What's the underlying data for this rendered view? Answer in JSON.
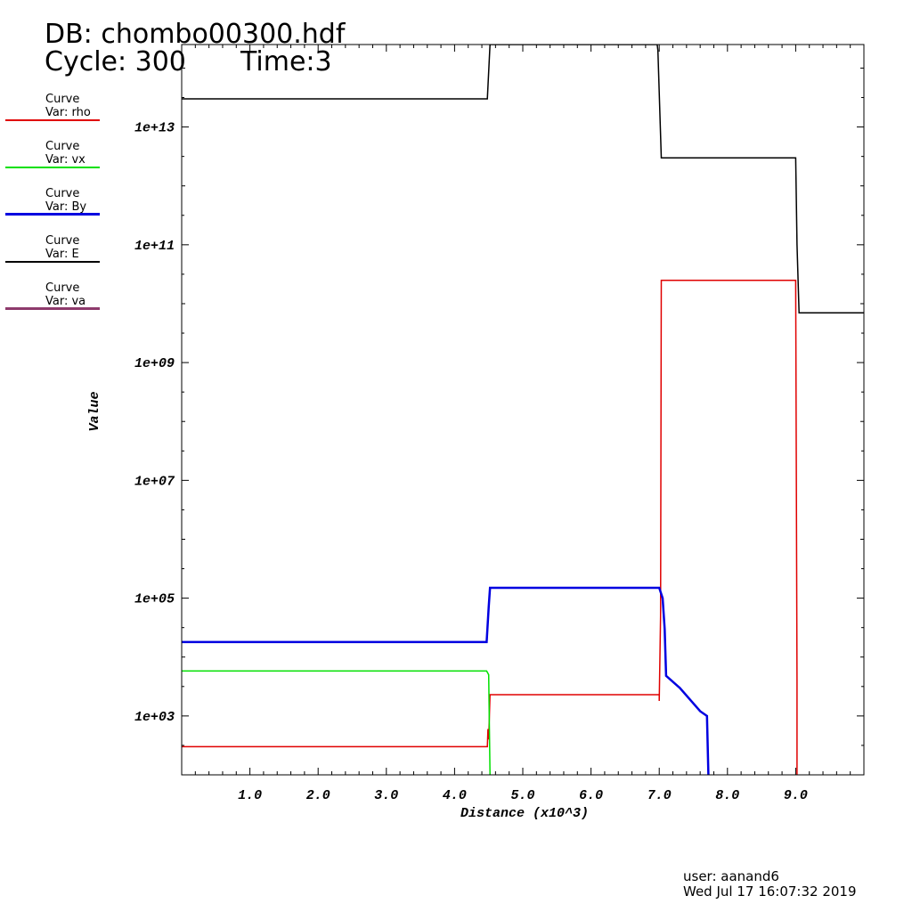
{
  "header": {
    "db_label": "DB: chombo00300.hdf",
    "cycle_label": "Cycle: 300",
    "time_label": "Time:3"
  },
  "legend": [
    {
      "title": "Curve",
      "var": "Var: rho",
      "color": "#e00000"
    },
    {
      "title": "Curve",
      "var": "Var: vx",
      "color": "#00e000"
    },
    {
      "title": "Curve",
      "var": "Var: By",
      "color": "#0000e0"
    },
    {
      "title": "Curve",
      "var": "Var: E",
      "color": "#000000"
    },
    {
      "title": "Curve",
      "var": "Var: va",
      "color": "#8e3a6c"
    }
  ],
  "footer": {
    "user": "user: aanand6",
    "timestamp": "Wed Jul 17 16:07:32 2019"
  },
  "chart_data": {
    "type": "line",
    "xlabel": "Distance (x10^3)",
    "ylabel": "Value",
    "xlim": [
      0,
      10
    ],
    "ylim_log10": [
      2,
      14.4
    ],
    "log_y": true,
    "x_ticks": [
      "1.0",
      "2.0",
      "3.0",
      "4.0",
      "5.0",
      "6.0",
      "7.0",
      "8.0",
      "9.0"
    ],
    "x_tick_values": [
      1,
      2,
      3,
      4,
      5,
      6,
      7,
      8,
      9
    ],
    "y_ticks": [
      "1e+03",
      "1e+05",
      "1e+07",
      "1e+09",
      "1e+11",
      "1e+13"
    ],
    "y_tick_values": [
      1000,
      100000,
      10000000,
      1000000000,
      100000000000,
      10000000000000
    ],
    "series": [
      {
        "name": "rho",
        "color": "#e00000",
        "width": 1.5,
        "points": [
          [
            0,
            300
          ],
          [
            4.48,
            300
          ],
          [
            4.49,
            600
          ],
          [
            4.5,
            400
          ],
          [
            4.52,
            2300
          ],
          [
            7.0,
            2300
          ],
          [
            7.0,
            1800
          ],
          [
            7.02,
            50000
          ],
          [
            7.03,
            25000000000.0
          ],
          [
            9.0,
            25000000000.0
          ],
          [
            9.02,
            4000
          ],
          [
            9.02,
            100
          ]
        ]
      },
      {
        "name": "vx",
        "color": "#00e000",
        "width": 1.5,
        "points": [
          [
            0,
            5800
          ],
          [
            4.47,
            5800
          ],
          [
            4.5,
            5000
          ],
          [
            4.52,
            100
          ]
        ]
      },
      {
        "name": "By",
        "color": "#0000e0",
        "width": 2.5,
        "points": [
          [
            0,
            18000
          ],
          [
            4.47,
            18000
          ],
          [
            4.5,
            70000
          ],
          [
            4.52,
            150000
          ],
          [
            7.0,
            150000
          ],
          [
            7.05,
            100000
          ],
          [
            7.08,
            30000
          ],
          [
            7.1,
            4800
          ],
          [
            7.3,
            3000
          ],
          [
            7.6,
            1200
          ],
          [
            7.7,
            1000
          ],
          [
            7.72,
            100
          ]
        ]
      },
      {
        "name": "E",
        "color": "#000000",
        "width": 1.5,
        "points": [
          [
            0,
            30000000000000.0
          ],
          [
            4.48,
            30000000000000.0
          ],
          [
            4.52,
            300000000000000.0
          ],
          [
            4.52,
            500000000000000.0
          ],
          [
            6.97,
            500000000000000.0
          ],
          [
            6.98,
            200000000000000.0
          ],
          [
            7.03,
            3000000000000.0
          ],
          [
            9.0,
            3000000000000.0
          ],
          [
            9.02,
            100000000000.0
          ],
          [
            9.05,
            7000000000.0
          ],
          [
            10,
            7000000000.0
          ]
        ]
      }
    ]
  }
}
